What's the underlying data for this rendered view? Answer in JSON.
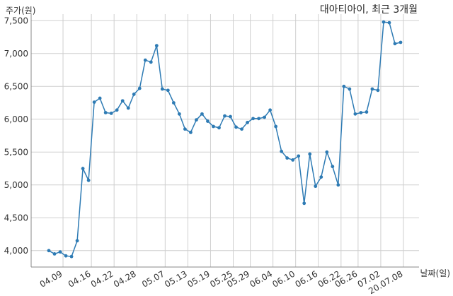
{
  "chart_data": {
    "type": "line",
    "title": "대아티아이, 최근 3개월",
    "ylabel": "주가(원)",
    "xlabel": "날짜(일)",
    "ylim": [
      3750,
      7600
    ],
    "yticks": [
      4000,
      4500,
      5000,
      5500,
      6000,
      6500,
      7000,
      7500
    ],
    "ytick_labels": [
      "4,000",
      "4,500",
      "5,000",
      "5,500",
      "6,000",
      "6,500",
      "7,000",
      "7,500"
    ],
    "x_tick_labels": [
      "04.09",
      "04.16",
      "04.22",
      "04.28",
      "05.07",
      "05.13",
      "05.19",
      "05.25",
      "05.29",
      "06.04",
      "06.10",
      "06.16",
      "06.22",
      "06.26",
      "07.02",
      "20.07.08"
    ],
    "x_tick_indices": [
      2.5,
      7.5,
      11.5,
      15.5,
      20.5,
      24.5,
      28.5,
      32.5,
      35.5,
      39.5,
      43.5,
      47.5,
      51.5,
      54.5,
      58.5,
      62.5
    ],
    "grid": true,
    "color": "#2e7bb4",
    "series": [
      {
        "values": [
          4000,
          3950,
          3980,
          3920,
          3910,
          4150,
          5250,
          5070,
          6260,
          6320,
          6100,
          6090,
          6140,
          6280,
          6170,
          6380,
          6470,
          6900,
          6870,
          7120,
          6460,
          6440,
          6250,
          6080,
          5850,
          5800,
          5990,
          6080,
          5970,
          5890,
          5870,
          6050,
          6040,
          5880,
          5850,
          5950,
          6010,
          6010,
          6030,
          6140,
          5890,
          5510,
          5410,
          5380,
          5440,
          4720,
          5470,
          4980,
          5120,
          5500,
          5280,
          5000,
          6500,
          6460,
          6080,
          6100,
          6110,
          6460,
          6440,
          7480,
          7470,
          7150,
          7170
        ]
      }
    ]
  }
}
